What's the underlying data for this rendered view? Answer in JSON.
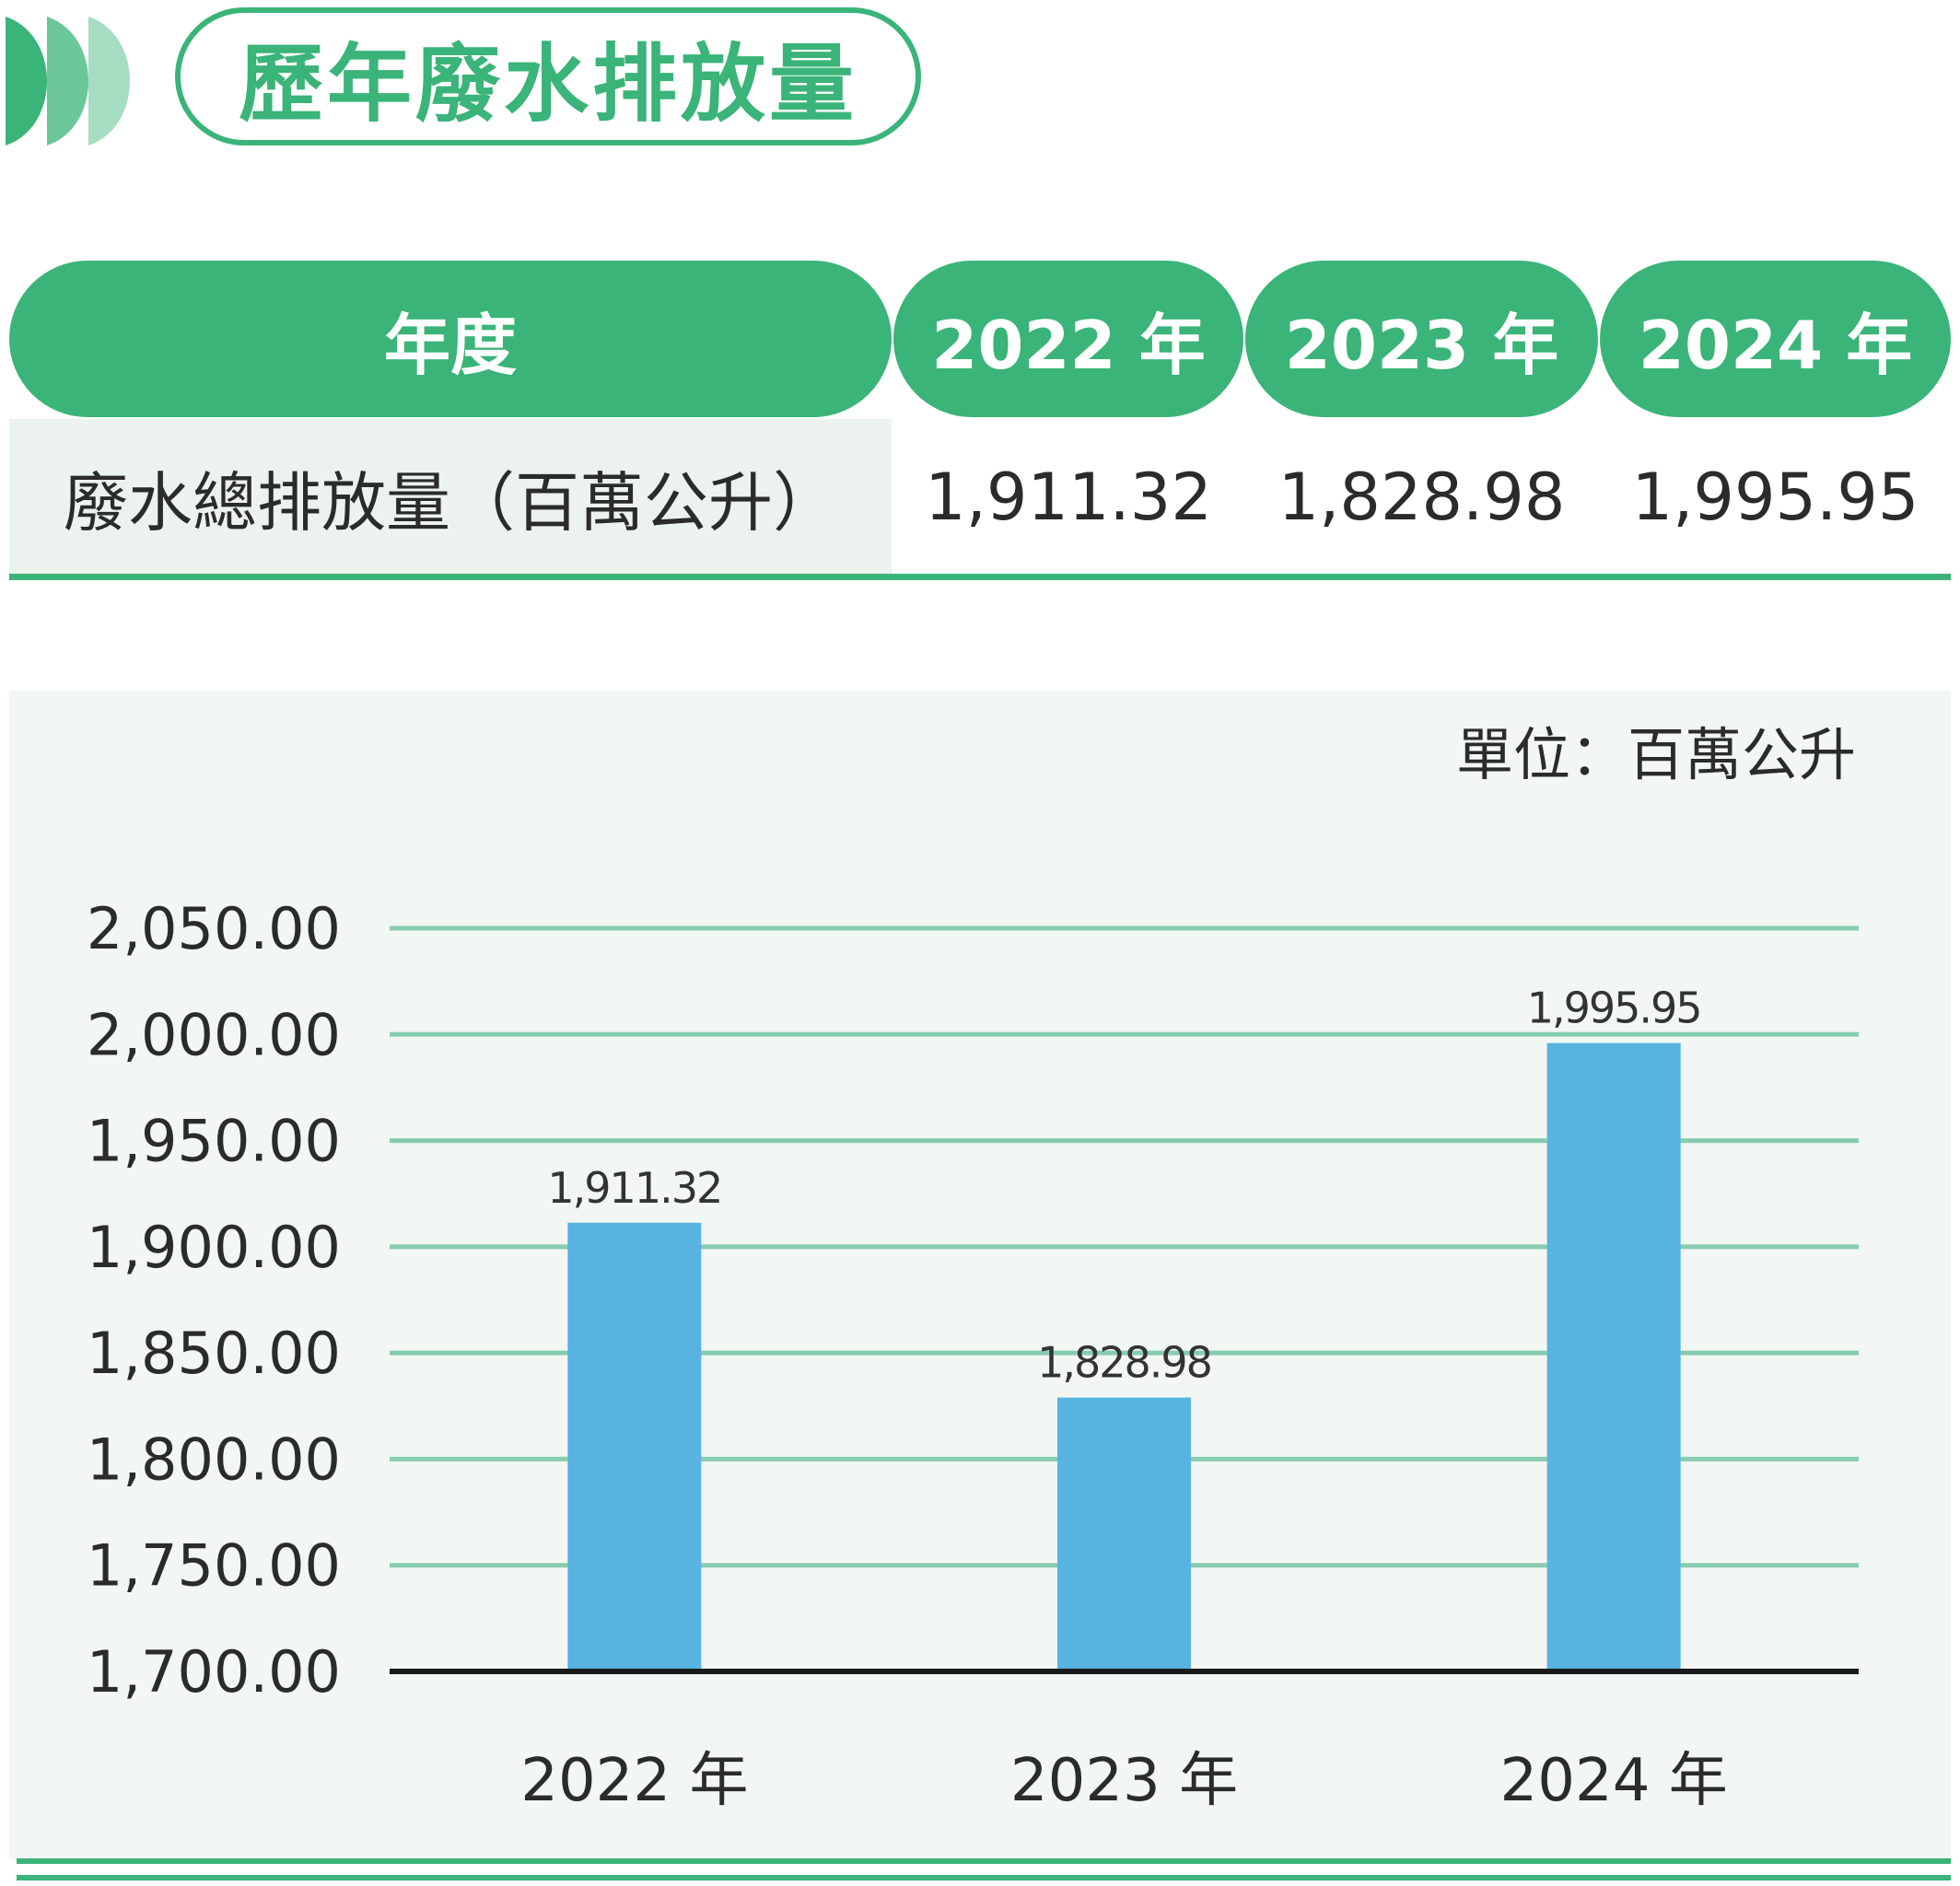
{
  "title": "歷年廢水排放量",
  "table": {
    "header_label": "年度",
    "years": [
      "2022 年",
      "2023 年",
      "2024 年"
    ],
    "row_label": "廢水總排放量（百萬公升）",
    "row_values": [
      "1,911.32",
      "1,828.98",
      "1,995.95"
    ]
  },
  "chart_data": {
    "type": "bar",
    "unit_label": "單位：百萬公升",
    "categories": [
      "2022 年",
      "2023 年",
      "2024 年"
    ],
    "values": [
      1911.32,
      1828.98,
      1995.95
    ],
    "value_labels": [
      "1,911.32",
      "1,828.98",
      "1,995.95"
    ],
    "yticks": [
      "1,700.00",
      "1,750.00",
      "1,800.00",
      "1,850.00",
      "1,900.00",
      "1,950.00",
      "2,000.00",
      "2,050.00"
    ],
    "ytick_values": [
      1700,
      1750,
      1800,
      1850,
      1900,
      1950,
      2000,
      2050
    ],
    "ylim": [
      1700,
      2050
    ],
    "grid": true,
    "legend": "none",
    "bar_color": "#58b3e0",
    "grid_color": "#88ccb0",
    "accent_color": "#3ab478"
  }
}
